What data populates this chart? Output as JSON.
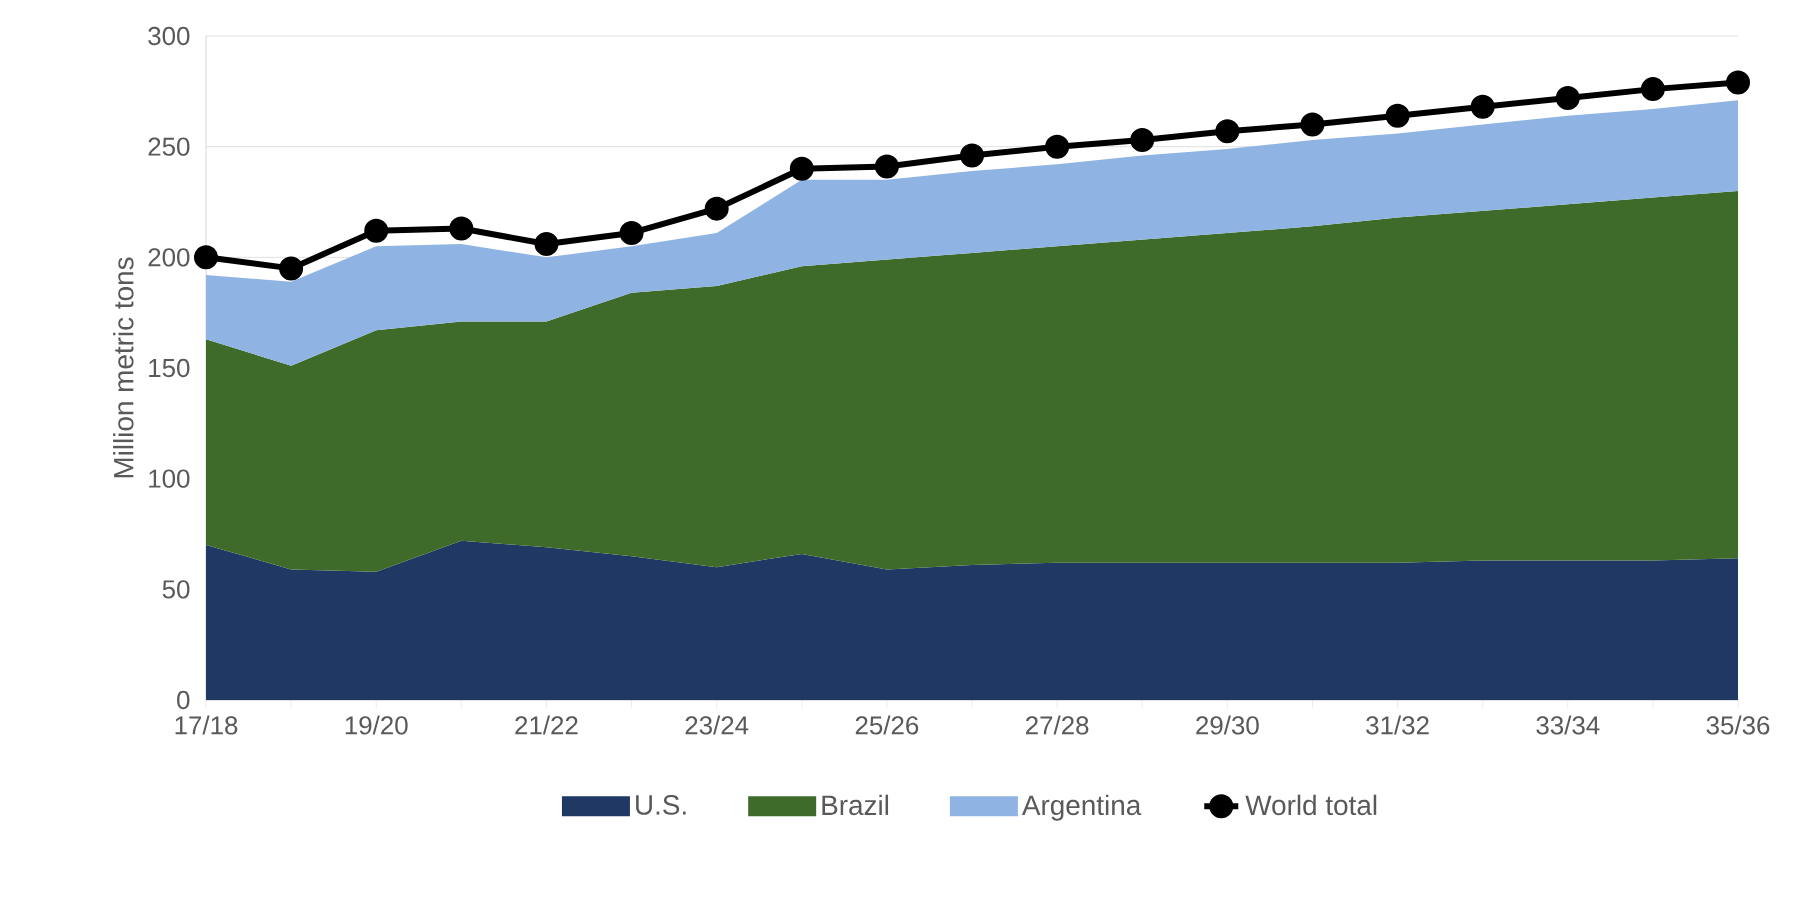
{
  "chart_data": {
    "type": "area",
    "stacked": true,
    "ylabel": "Million metric tons",
    "categories": [
      "17/18",
      null,
      "19/20",
      null,
      "21/22",
      null,
      "23/24",
      null,
      "25/26",
      null,
      "27/28",
      null,
      "29/30",
      null,
      "31/32",
      null,
      "33/34",
      null,
      "35/36"
    ],
    "series": [
      {
        "name": "U.S.",
        "color": "#203864",
        "values": [
          70,
          59,
          58,
          72,
          69,
          65,
          60,
          66,
          59,
          61,
          62,
          62,
          62,
          62,
          62,
          63,
          63,
          63,
          64
        ]
      },
      {
        "name": "Brazil",
        "color": "#3f6b2a",
        "values": [
          93,
          92,
          109,
          99,
          102,
          119,
          127,
          130,
          140,
          141,
          143,
          146,
          149,
          152,
          156,
          158,
          161,
          164,
          166
        ]
      },
      {
        "name": "Argentina",
        "color": "#8fb4e3",
        "values": [
          29,
          38,
          38,
          35,
          29,
          21,
          24,
          39,
          36,
          37,
          37,
          38,
          38,
          39,
          38,
          39,
          40,
          40,
          41
        ]
      },
      {
        "name": "World total",
        "type": "line",
        "color": "#000000",
        "marker": "circle",
        "values": [
          200,
          195,
          212,
          213,
          206,
          211,
          222,
          240,
          241,
          246,
          250,
          253,
          257,
          260,
          264,
          268,
          272,
          276,
          279
        ]
      }
    ],
    "ylim": [
      0,
      300
    ],
    "yticks": [
      0,
      50,
      100,
      150,
      200,
      250,
      300
    ],
    "grid": "y",
    "legend": "bottom"
  }
}
